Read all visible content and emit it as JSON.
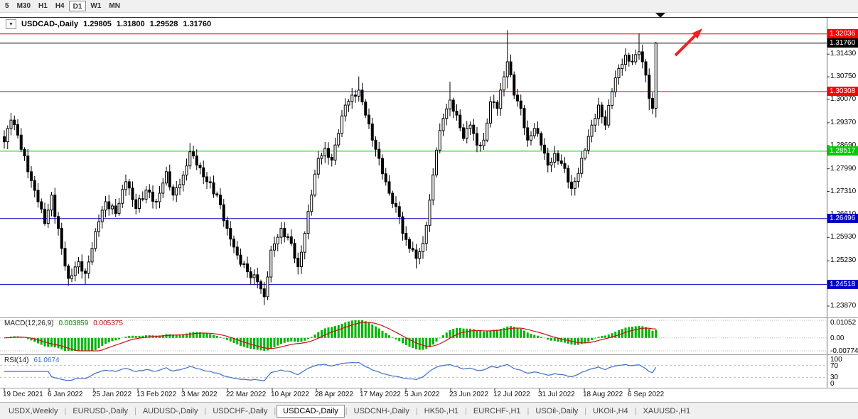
{
  "toolbar": {
    "periods": [
      "5",
      "M30",
      "H1",
      "H4",
      "D1",
      "W1",
      "MN"
    ],
    "active": "D1"
  },
  "chart_info": {
    "symbol_period": "USDCAD-,Daily",
    "open": "1.29805",
    "high": "1.31800",
    "low": "1.29528",
    "close": "1.31760"
  },
  "indicators": {
    "macd": {
      "label": "MACD(12,26,9)",
      "value_main": "0.003859",
      "value_signal": "0.005375",
      "scale_labels": [
        "0.01052",
        "0.00",
        "-0.00774"
      ],
      "scale_max": 0.01052,
      "scale_min": -0.00774,
      "histogram_color": "#00b400",
      "signal_color": "#c41414"
    },
    "rsi": {
      "label": "RSI(14)",
      "value": "61.0674",
      "scale_labels": [
        "100",
        "70",
        "30",
        "0"
      ],
      "levels": [
        70,
        30
      ],
      "line_color": "#3e6ec4"
    }
  },
  "chart_data": {
    "type": "candlestick",
    "symbol": "USDCAD-",
    "timeframe": "Daily",
    "x_labels": [
      "19 Dec 2021",
      "6 Jan 2022",
      "25 Jan 2022",
      "13 Feb 2022",
      "3 Mar 2022",
      "22 Mar 2022",
      "10 Apr 2022",
      "28 Apr 2022",
      "17 May 2022",
      "5 Jun 2022",
      "23 Jun 2022",
      "12 Jul 2022",
      "31 Jul 2022",
      "18 Aug 2022",
      "6 Sep 2022"
    ],
    "y_ticks": [
      "1.31430",
      "1.30750",
      "1.30070",
      "1.29370",
      "1.28690",
      "1.27990",
      "1.27310",
      "1.26610",
      "1.25930",
      "1.25230",
      "1.24550",
      "1.23870"
    ],
    "price_range": {
      "top": 1.325,
      "bottom": 1.2355
    },
    "num_bars": 194,
    "price_anchors": [
      [
        0,
        1.288
      ],
      [
        2,
        1.2945
      ],
      [
        4,
        1.29
      ],
      [
        7,
        1.279
      ],
      [
        10,
        1.27
      ],
      [
        12,
        1.2635
      ],
      [
        14,
        1.272
      ],
      [
        17,
        1.256
      ],
      [
        19,
        1.247
      ],
      [
        22,
        1.252
      ],
      [
        24,
        1.2485
      ],
      [
        26,
        1.256
      ],
      [
        28,
        1.264
      ],
      [
        30,
        1.27
      ],
      [
        33,
        1.2665
      ],
      [
        36,
        1.276
      ],
      [
        39,
        1.268
      ],
      [
        42,
        1.2735
      ],
      [
        45,
        1.27
      ],
      [
        48,
        1.279
      ],
      [
        50,
        1.272
      ],
      [
        53,
        1.278
      ],
      [
        55,
        1.285
      ],
      [
        57,
        1.281
      ],
      [
        60,
        1.276
      ],
      [
        63,
        1.272
      ],
      [
        66,
        1.262
      ],
      [
        69,
        1.254
      ],
      [
        72,
        1.249
      ],
      [
        75,
        1.246
      ],
      [
        77,
        1.2415
      ],
      [
        79,
        1.2555
      ],
      [
        82,
        1.262
      ],
      [
        85,
        1.2575
      ],
      [
        87,
        1.2505
      ],
      [
        89,
        1.2605
      ],
      [
        91,
        1.272
      ],
      [
        93,
        1.283
      ],
      [
        95,
        1.286
      ],
      [
        97,
        1.2825
      ],
      [
        99,
        1.2905
      ],
      [
        101,
        1.299
      ],
      [
        103,
        1.302
      ],
      [
        105,
        1.3035
      ],
      [
        107,
        1.296
      ],
      [
        109,
        1.2885
      ],
      [
        111,
        1.283
      ],
      [
        113,
        1.276
      ],
      [
        115,
        1.2695
      ],
      [
        117,
        1.2655
      ],
      [
        118,
        1.2605
      ],
      [
        120,
        1.256
      ],
      [
        122,
        1.253
      ],
      [
        124,
        1.2575
      ],
      [
        126,
        1.2705
      ],
      [
        128,
        1.2855
      ],
      [
        130,
        1.295
      ],
      [
        132,
        1.3005
      ],
      [
        134,
        1.296
      ],
      [
        136,
        1.289
      ],
      [
        138,
        1.293
      ],
      [
        140,
        1.287
      ],
      [
        142,
        1.2885
      ],
      [
        144,
        1.3
      ],
      [
        146,
        1.298
      ],
      [
        148,
        1.3075
      ],
      [
        149,
        1.312
      ],
      [
        151,
        1.302
      ],
      [
        153,
        1.298
      ],
      [
        155,
        1.2885
      ],
      [
        157,
        1.292
      ],
      [
        159,
        1.287
      ],
      [
        161,
        1.281
      ],
      [
        163,
        1.2845
      ],
      [
        166,
        1.28
      ],
      [
        168,
        1.274
      ],
      [
        170,
        1.2785
      ],
      [
        172,
        1.2855
      ],
      [
        174,
        1.293
      ],
      [
        176,
        1.299
      ],
      [
        178,
        1.293
      ],
      [
        180,
        1.303
      ],
      [
        182,
        1.31
      ],
      [
        184,
        1.314
      ],
      [
        186,
        1.312
      ],
      [
        188,
        1.315
      ],
      [
        189,
        1.312
      ],
      [
        190,
        1.308
      ],
      [
        191,
        1.301
      ],
      [
        192,
        1.29805
      ],
      [
        193,
        1.3176
      ]
    ],
    "candle_overrides": {
      "19": {
        "l": 1.2448
      },
      "24": {
        "l": 1.2452
      },
      "55": {
        "h": 1.2876
      },
      "77": {
        "l": 1.239
      },
      "87": {
        "l": 1.2482
      },
      "105": {
        "h": 1.3076
      },
      "122": {
        "l": 1.25
      },
      "132": {
        "h": 1.306
      },
      "149": {
        "h": 1.3215,
        "l": 1.304
      },
      "168": {
        "l": 1.2718
      },
      "188": {
        "h": 1.3205
      },
      "191": {
        "l": 1.2975
      },
      "193": {
        "o": 1.29805,
        "h": 1.318,
        "l": 1.29528,
        "c": 1.3176
      }
    },
    "candle_up_fill": "#ffffff",
    "candle_down_fill": "#000000",
    "candle_stroke": "#000000",
    "h_lines": [
      {
        "price": 1.32036,
        "label": "1.32036",
        "color": "#ff0000"
      },
      {
        "price": 1.30308,
        "label": "1.30308",
        "color": "#ff0000"
      },
      {
        "price": 1.28517,
        "label": "1.28517",
        "color": "#00cc00"
      },
      {
        "price": 1.26496,
        "label": "1.26496",
        "color": "#0000c8"
      },
      {
        "price": 1.24518,
        "label": "1.24518",
        "color": "#0000c8"
      }
    ],
    "current_price": {
      "price": 1.3176,
      "label": "1.31760",
      "bg": "#000000",
      "line_color": "#000000"
    },
    "annotations": {
      "arrow": {
        "type": "arrow-up-right",
        "color": "#f02020",
        "x1": 950,
        "y1": 78,
        "x2": 988,
        "y2": 40
      },
      "shift_marker": {
        "x": 929,
        "y": 18
      }
    }
  },
  "bottom_tabs": {
    "active": "USDCAD-,Daily",
    "tabs": [
      "USDX,Weekly",
      "EURUSD-,Daily",
      "AUDUSD-,Daily",
      "USDCHF-,Daily",
      "USDCAD-,Daily",
      "USDCNH-,Daily",
      "HK50-,H1",
      "EURCHF-,H1",
      "USOil-,Daily",
      "UKOil-,H4",
      "XAUUSD-,H1"
    ]
  }
}
